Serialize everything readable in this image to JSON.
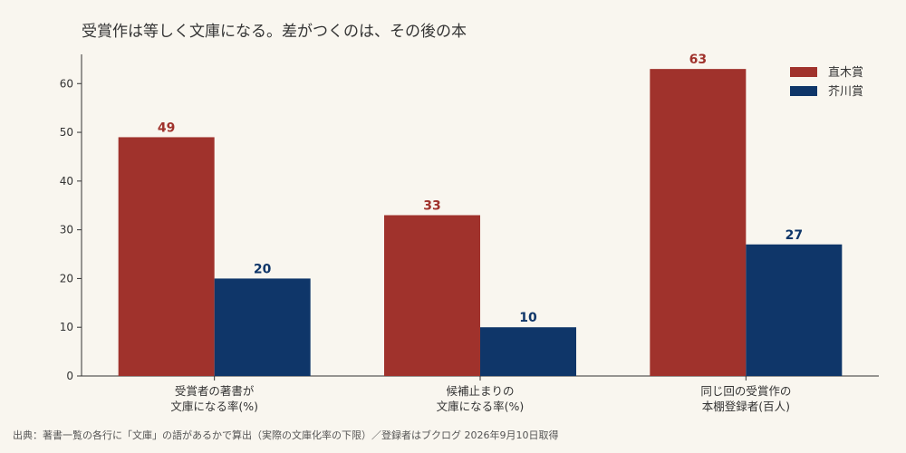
{
  "chart_data": {
    "type": "bar",
    "title": "受賞作は等しく文庫になる。差がつくのは、その後の本",
    "categories": [
      [
        "受賞者の著書が",
        "文庫になる率(%)"
      ],
      [
        "候補止まりの",
        "文庫になる率(%)"
      ],
      [
        "同じ回の受賞作の",
        "本棚登録者(百人)"
      ]
    ],
    "series": [
      {
        "name": "直木賞",
        "color": "#a0322c",
        "values": [
          49,
          33,
          63
        ]
      },
      {
        "name": "芥川賞",
        "color": "#0f3669",
        "values": [
          20,
          10,
          27
        ]
      }
    ],
    "ylim": [
      0,
      66
    ],
    "yticks": [
      0,
      10,
      20,
      30,
      40,
      50,
      60
    ],
    "xlabel": "",
    "ylabel": "",
    "grid": false,
    "legend": "top-right",
    "source": "出典：著書一覧の各行に「文庫」の語があるかで算出（実際の文庫化率の下限）／登録者はブクログ 2026年9月10日取得"
  }
}
